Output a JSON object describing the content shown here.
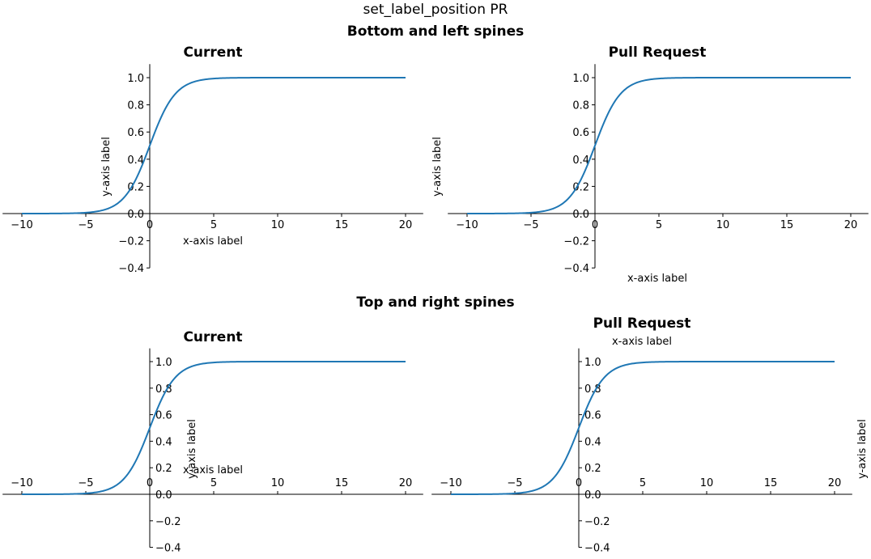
{
  "figure": {
    "suptitle": "set_label_position PR",
    "row_titles": [
      "Bottom and left spines",
      "Top and right spines"
    ]
  },
  "colors": {
    "line": "#1f77b4",
    "axis": "#000000"
  },
  "chart_data": [
    {
      "type": "line",
      "title": "Current",
      "xlabel": "x-axis label",
      "ylabel": "y-axis label",
      "xlim": [
        -11,
        21
      ],
      "ylim": [
        -0.4,
        1.1
      ],
      "xticks": [
        -10,
        -5,
        0,
        5,
        10,
        15,
        20
      ],
      "yticks": [
        -0.4,
        -0.2,
        0.0,
        0.2,
        0.4,
        0.6,
        0.8,
        1.0
      ],
      "tick_labels_x": [
        "−10",
        "−5",
        "0",
        "5",
        "10",
        "15",
        "20"
      ],
      "tick_labels_y": [
        "−0.4",
        "−0.2",
        "0.0",
        "0.2",
        "0.4",
        "0.6",
        "0.8",
        "1.0"
      ],
      "spines": [
        "bottom",
        "left"
      ],
      "grid": false,
      "series": [
        {
          "function": "logistic",
          "x": [
            -10,
            -5,
            -2,
            0,
            2,
            5,
            10,
            20
          ],
          "y": [
            0.0,
            0.007,
            0.12,
            0.5,
            0.88,
            0.993,
            1.0,
            1.0
          ]
        }
      ]
    },
    {
      "type": "line",
      "title": "Pull Request",
      "xlabel": "x-axis label",
      "ylabel": "y-axis label",
      "xlim": [
        -11,
        21
      ],
      "ylim": [
        -0.4,
        1.1
      ],
      "xticks": [
        -10,
        -5,
        0,
        5,
        10,
        15,
        20
      ],
      "yticks": [
        -0.4,
        -0.2,
        0.0,
        0.2,
        0.4,
        0.6,
        0.8,
        1.0
      ],
      "tick_labels_x": [
        "−10",
        "−5",
        "0",
        "5",
        "10",
        "15",
        "20"
      ],
      "tick_labels_y": [
        "−0.4",
        "−0.2",
        "0.0",
        "0.2",
        "0.4",
        "0.6",
        "0.8",
        "1.0"
      ],
      "spines": [
        "bottom",
        "left"
      ],
      "grid": false,
      "series": [
        {
          "function": "logistic",
          "x": [
            -10,
            -5,
            -2,
            0,
            2,
            5,
            10,
            20
          ],
          "y": [
            0.0,
            0.007,
            0.12,
            0.5,
            0.88,
            0.993,
            1.0,
            1.0
          ]
        }
      ]
    },
    {
      "type": "line",
      "title": "Current",
      "xlabel": "x-axis label",
      "ylabel": "y-axis label",
      "xlim": [
        -11,
        21
      ],
      "ylim": [
        -0.4,
        1.1
      ],
      "xticks": [
        -10,
        -5,
        0,
        5,
        10,
        15,
        20
      ],
      "yticks": [
        -0.4,
        -0.2,
        0.0,
        0.2,
        0.4,
        0.6,
        0.8,
        1.0
      ],
      "tick_labels_x": [
        "−10",
        "−5",
        "0",
        "5",
        "10",
        "15",
        "20"
      ],
      "tick_labels_y": [
        "−0.4",
        "−0.2",
        "0.0",
        "0.2",
        "0.4",
        "0.6",
        "0.8",
        "1.0"
      ],
      "spines": [
        "top",
        "right"
      ],
      "grid": false,
      "series": [
        {
          "function": "logistic",
          "x": [
            -10,
            -5,
            -2,
            0,
            2,
            5,
            10,
            20
          ],
          "y": [
            0.0,
            0.007,
            0.12,
            0.5,
            0.88,
            0.993,
            1.0,
            1.0
          ]
        }
      ]
    },
    {
      "type": "line",
      "title": "Pull Request",
      "xlabel": "x-axis label",
      "ylabel": "y-axis label",
      "xlim": [
        -11,
        21
      ],
      "ylim": [
        -0.4,
        1.1
      ],
      "xticks": [
        -10,
        -5,
        0,
        5,
        10,
        15,
        20
      ],
      "yticks": [
        -0.4,
        -0.2,
        0.0,
        0.2,
        0.4,
        0.6,
        0.8,
        1.0
      ],
      "tick_labels_x": [
        "−10",
        "−5",
        "0",
        "5",
        "10",
        "15",
        "20"
      ],
      "tick_labels_y": [
        "−0.4",
        "−0.2",
        "0.0",
        "0.2",
        "0.4",
        "0.6",
        "0.8",
        "1.0"
      ],
      "spines": [
        "top",
        "right"
      ],
      "grid": false,
      "series": [
        {
          "function": "logistic",
          "x": [
            -10,
            -5,
            -2,
            0,
            2,
            5,
            10,
            20
          ],
          "y": [
            0.0,
            0.007,
            0.12,
            0.5,
            0.88,
            0.993,
            1.0,
            1.0
          ]
        }
      ]
    }
  ]
}
